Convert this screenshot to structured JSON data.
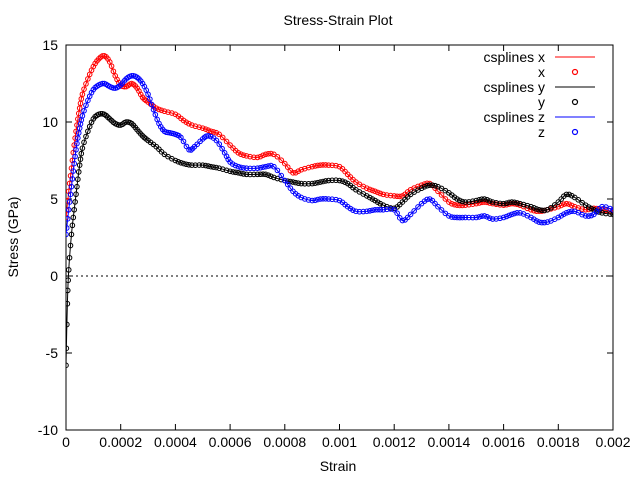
{
  "chart_data": {
    "type": "line",
    "title": "Stress-Strain Plot",
    "xlabel": "Strain",
    "ylabel": "Stress (GPa)",
    "xlim": [
      0,
      0.002
    ],
    "ylim": [
      -10,
      15
    ],
    "x_ticks": [
      0,
      0.0002,
      0.0004,
      0.0006,
      0.0008,
      0.001,
      0.0012,
      0.0014,
      0.0016,
      0.0018,
      0.002
    ],
    "x_tick_labels": [
      "0",
      "0.0002",
      "0.0004",
      "0.0006",
      "0.0008",
      "0.001",
      "0.0012",
      "0.0014",
      "0.0016",
      "0.0018",
      "0.002"
    ],
    "y_ticks": [
      -10,
      -5,
      0,
      5,
      10,
      15
    ],
    "y_tick_labels": [
      "-10",
      "-5",
      "0",
      "5",
      "10",
      "15"
    ],
    "zero_line": true,
    "grid": false,
    "legend_position": "top-right",
    "legend": [
      {
        "label": "csplines x",
        "style": "line",
        "color": "#ff0000"
      },
      {
        "label": "x",
        "style": "points",
        "color": "#ff0000"
      },
      {
        "label": "csplines y",
        "style": "line",
        "color": "#000000"
      },
      {
        "label": "y",
        "style": "points",
        "color": "#000000"
      },
      {
        "label": "csplines z",
        "style": "line",
        "color": "#0000ff"
      },
      {
        "label": "z",
        "style": "points",
        "color": "#0000ff"
      }
    ],
    "series": [
      {
        "name": "x",
        "color": "#ff0000",
        "points": [
          [
            0,
            3.8
          ],
          [
            1e-05,
            5.5
          ],
          [
            2e-05,
            7.0
          ],
          [
            3e-05,
            8.5
          ],
          [
            4e-05,
            9.8
          ],
          [
            5e-05,
            10.9
          ],
          [
            6e-05,
            11.8
          ],
          [
            8e-05,
            12.8
          ],
          [
            0.0001,
            13.6
          ],
          [
            0.00012,
            14.1
          ],
          [
            0.00014,
            14.3
          ],
          [
            0.00016,
            13.9
          ],
          [
            0.00018,
            13.0
          ],
          [
            0.0002,
            12.4
          ],
          [
            0.00022,
            12.3
          ],
          [
            0.00024,
            12.5
          ],
          [
            0.00026,
            12.2
          ],
          [
            0.00028,
            11.6
          ],
          [
            0.0003,
            11.3
          ],
          [
            0.00033,
            10.9
          ],
          [
            0.00036,
            10.7
          ],
          [
            0.0004,
            10.5
          ],
          [
            0.00043,
            10.1
          ],
          [
            0.00046,
            9.8
          ],
          [
            0.0005,
            9.6
          ],
          [
            0.00053,
            9.4
          ],
          [
            0.00056,
            9.2
          ],
          [
            0.0006,
            8.5
          ],
          [
            0.00063,
            8.0
          ],
          [
            0.00066,
            7.8
          ],
          [
            0.0007,
            7.7
          ],
          [
            0.00073,
            7.9
          ],
          [
            0.00076,
            7.9
          ],
          [
            0.0008,
            7.3
          ],
          [
            0.00083,
            6.7
          ],
          [
            0.00086,
            6.9
          ],
          [
            0.0009,
            7.1
          ],
          [
            0.00093,
            7.2
          ],
          [
            0.00096,
            7.2
          ],
          [
            0.001,
            7.1
          ],
          [
            0.00103,
            6.6
          ],
          [
            0.00106,
            6.1
          ],
          [
            0.0011,
            5.7
          ],
          [
            0.00113,
            5.5
          ],
          [
            0.00116,
            5.3
          ],
          [
            0.0012,
            5.2
          ],
          [
            0.00123,
            5.2
          ],
          [
            0.00126,
            5.6
          ],
          [
            0.0013,
            5.9
          ],
          [
            0.00133,
            6.0
          ],
          [
            0.00136,
            5.5
          ],
          [
            0.0014,
            4.8
          ],
          [
            0.00143,
            4.6
          ],
          [
            0.00146,
            4.6
          ],
          [
            0.0015,
            4.7
          ],
          [
            0.00153,
            4.8
          ],
          [
            0.00156,
            4.7
          ],
          [
            0.0016,
            4.6
          ],
          [
            0.00163,
            4.7
          ],
          [
            0.00166,
            4.6
          ],
          [
            0.0017,
            4.3
          ],
          [
            0.00173,
            4.2
          ],
          [
            0.00176,
            4.3
          ],
          [
            0.0018,
            4.5
          ],
          [
            0.00183,
            4.7
          ],
          [
            0.00186,
            4.5
          ],
          [
            0.0019,
            4.3
          ],
          [
            0.00193,
            4.4
          ],
          [
            0.00196,
            4.3
          ],
          [
            0.002,
            4.2
          ]
        ]
      },
      {
        "name": "y",
        "color": "#000000",
        "points": [
          [
            0,
            -5.8
          ],
          [
            5e-06,
            -1.8
          ],
          [
            1e-05,
            0.4
          ],
          [
            2e-05,
            2.7
          ],
          [
            3e-05,
            4.3
          ],
          [
            4e-05,
            5.8
          ],
          [
            5e-05,
            7.2
          ],
          [
            6e-05,
            8.3
          ],
          [
            8e-05,
            9.4
          ],
          [
            0.0001,
            10.2
          ],
          [
            0.00012,
            10.5
          ],
          [
            0.00014,
            10.5
          ],
          [
            0.00016,
            10.2
          ],
          [
            0.00018,
            9.9
          ],
          [
            0.0002,
            9.8
          ],
          [
            0.00022,
            10.0
          ],
          [
            0.00024,
            9.9
          ],
          [
            0.00026,
            9.5
          ],
          [
            0.00028,
            9.1
          ],
          [
            0.0003,
            8.8
          ],
          [
            0.00033,
            8.4
          ],
          [
            0.00036,
            7.9
          ],
          [
            0.0004,
            7.5
          ],
          [
            0.00043,
            7.3
          ],
          [
            0.00046,
            7.2
          ],
          [
            0.0005,
            7.2
          ],
          [
            0.00053,
            7.1
          ],
          [
            0.00056,
            7.0
          ],
          [
            0.0006,
            6.8
          ],
          [
            0.00063,
            6.7
          ],
          [
            0.00066,
            6.6
          ],
          [
            0.0007,
            6.6
          ],
          [
            0.00073,
            6.6
          ],
          [
            0.00076,
            6.4
          ],
          [
            0.0008,
            6.2
          ],
          [
            0.00083,
            6.1
          ],
          [
            0.00086,
            6.0
          ],
          [
            0.0009,
            6.0
          ],
          [
            0.00093,
            6.1
          ],
          [
            0.00096,
            6.2
          ],
          [
            0.001,
            6.2
          ],
          [
            0.00103,
            6.0
          ],
          [
            0.00106,
            5.6
          ],
          [
            0.0011,
            5.2
          ],
          [
            0.00113,
            4.9
          ],
          [
            0.00116,
            4.6
          ],
          [
            0.0012,
            4.4
          ],
          [
            0.00123,
            4.8
          ],
          [
            0.00126,
            5.3
          ],
          [
            0.0013,
            5.7
          ],
          [
            0.00133,
            5.9
          ],
          [
            0.00136,
            5.8
          ],
          [
            0.0014,
            5.4
          ],
          [
            0.00143,
            5.0
          ],
          [
            0.00146,
            4.8
          ],
          [
            0.0015,
            4.9
          ],
          [
            0.00153,
            5.0
          ],
          [
            0.00156,
            4.8
          ],
          [
            0.0016,
            4.7
          ],
          [
            0.00163,
            4.8
          ],
          [
            0.00166,
            4.7
          ],
          [
            0.0017,
            4.5
          ],
          [
            0.00173,
            4.3
          ],
          [
            0.00176,
            4.3
          ],
          [
            0.0018,
            4.8
          ],
          [
            0.00183,
            5.3
          ],
          [
            0.00186,
            5.1
          ],
          [
            0.0019,
            4.6
          ],
          [
            0.00193,
            4.3
          ],
          [
            0.00196,
            4.1
          ],
          [
            0.002,
            4.0
          ]
        ]
      },
      {
        "name": "z",
        "color": "#0000ff",
        "points": [
          [
            0,
            2.7
          ],
          [
            1e-05,
            4.3
          ],
          [
            2e-05,
            5.8
          ],
          [
            3e-05,
            7.3
          ],
          [
            4e-05,
            8.6
          ],
          [
            5e-05,
            9.6
          ],
          [
            6e-05,
            10.4
          ],
          [
            8e-05,
            11.4
          ],
          [
            0.0001,
            12.1
          ],
          [
            0.00012,
            12.4
          ],
          [
            0.00014,
            12.5
          ],
          [
            0.00016,
            12.3
          ],
          [
            0.00018,
            12.2
          ],
          [
            0.0002,
            12.4
          ],
          [
            0.00022,
            12.8
          ],
          [
            0.00024,
            13.0
          ],
          [
            0.00026,
            12.9
          ],
          [
            0.00028,
            12.5
          ],
          [
            0.0003,
            11.8
          ],
          [
            0.00032,
            10.8
          ],
          [
            0.00034,
            9.9
          ],
          [
            0.00036,
            9.4
          ],
          [
            0.00038,
            9.3
          ],
          [
            0.0004,
            9.2
          ],
          [
            0.00042,
            9.0
          ],
          [
            0.00045,
            8.2
          ],
          [
            0.00047,
            8.4
          ],
          [
            0.0005,
            8.9
          ],
          [
            0.00052,
            9.1
          ],
          [
            0.00055,
            8.8
          ],
          [
            0.00058,
            8.0
          ],
          [
            0.0006,
            7.4
          ],
          [
            0.00063,
            7.1
          ],
          [
            0.00066,
            7.0
          ],
          [
            0.0007,
            7.0
          ],
          [
            0.00073,
            7.1
          ],
          [
            0.00076,
            7.1
          ],
          [
            0.0008,
            6.2
          ],
          [
            0.00083,
            5.5
          ],
          [
            0.00086,
            5.1
          ],
          [
            0.0009,
            4.9
          ],
          [
            0.00093,
            5.0
          ],
          [
            0.00096,
            5.0
          ],
          [
            0.001,
            4.9
          ],
          [
            0.00103,
            4.5
          ],
          [
            0.00106,
            4.2
          ],
          [
            0.0011,
            4.2
          ],
          [
            0.00113,
            4.3
          ],
          [
            0.00116,
            4.3
          ],
          [
            0.0012,
            4.3
          ],
          [
            0.00123,
            3.6
          ],
          [
            0.00126,
            4.0
          ],
          [
            0.0013,
            4.7
          ],
          [
            0.00133,
            5.0
          ],
          [
            0.00136,
            4.5
          ],
          [
            0.0014,
            3.9
          ],
          [
            0.00143,
            3.8
          ],
          [
            0.00146,
            3.8
          ],
          [
            0.0015,
            3.8
          ],
          [
            0.00153,
            3.9
          ],
          [
            0.00156,
            3.7
          ],
          [
            0.0016,
            3.8
          ],
          [
            0.00163,
            4.0
          ],
          [
            0.00166,
            4.1
          ],
          [
            0.0017,
            3.8
          ],
          [
            0.00173,
            3.5
          ],
          [
            0.00176,
            3.5
          ],
          [
            0.0018,
            3.8
          ],
          [
            0.00183,
            4.1
          ],
          [
            0.00186,
            4.2
          ],
          [
            0.0019,
            3.9
          ],
          [
            0.00193,
            4.0
          ],
          [
            0.00196,
            4.5
          ],
          [
            0.002,
            4.3
          ]
        ]
      }
    ]
  }
}
